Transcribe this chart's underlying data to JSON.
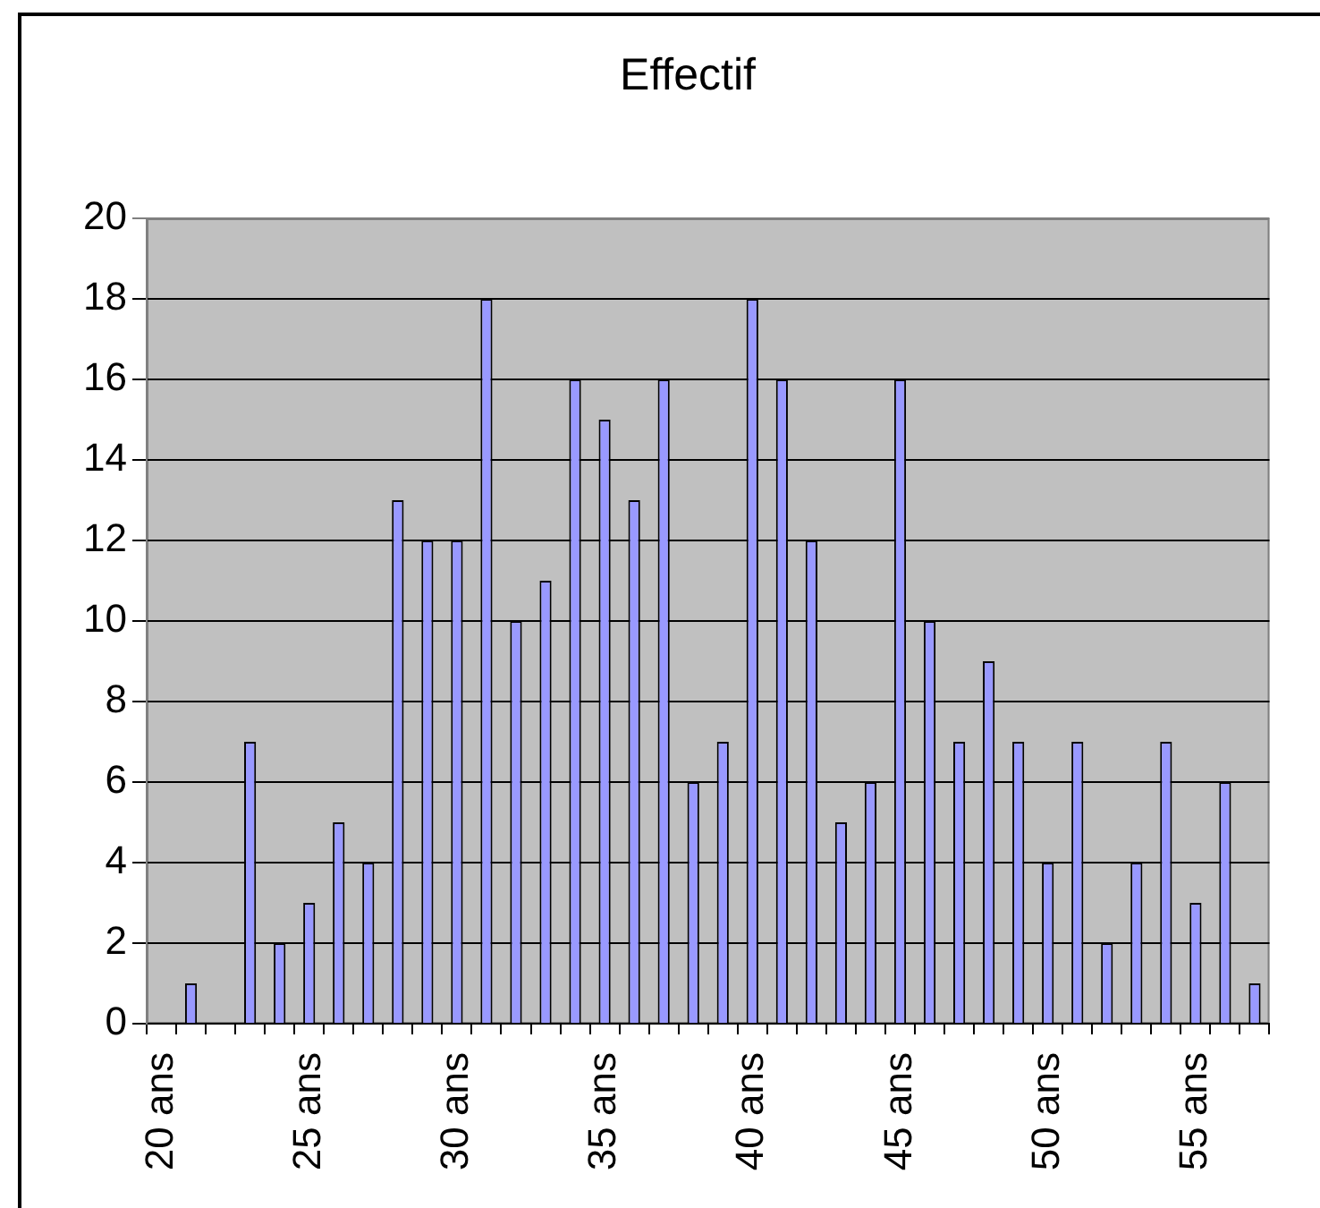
{
  "chart_data": {
    "type": "bar",
    "title": "Effectif",
    "categories": [
      "20 ans",
      null,
      null,
      null,
      null,
      "25 ans",
      null,
      null,
      null,
      null,
      "30 ans",
      null,
      null,
      null,
      null,
      "35 ans",
      null,
      null,
      null,
      null,
      "40 ans",
      null,
      null,
      null,
      null,
      "45 ans",
      null,
      null,
      null,
      null,
      "50 ans",
      null,
      null,
      null,
      null,
      "55 ans",
      null,
      null
    ],
    "values": [
      0,
      1,
      0,
      7,
      2,
      3,
      5,
      4,
      13,
      12,
      12,
      18,
      10,
      11,
      16,
      15,
      13,
      16,
      6,
      7,
      18,
      16,
      12,
      5,
      6,
      16,
      10,
      7,
      9,
      7,
      4,
      7,
      2,
      4,
      7,
      3,
      6,
      1
    ],
    "color": "#9999ff",
    "ylim": [
      0,
      20
    ],
    "yticks": [
      0,
      2,
      4,
      6,
      8,
      10,
      12,
      14,
      16,
      18,
      20
    ],
    "grid": "y"
  }
}
